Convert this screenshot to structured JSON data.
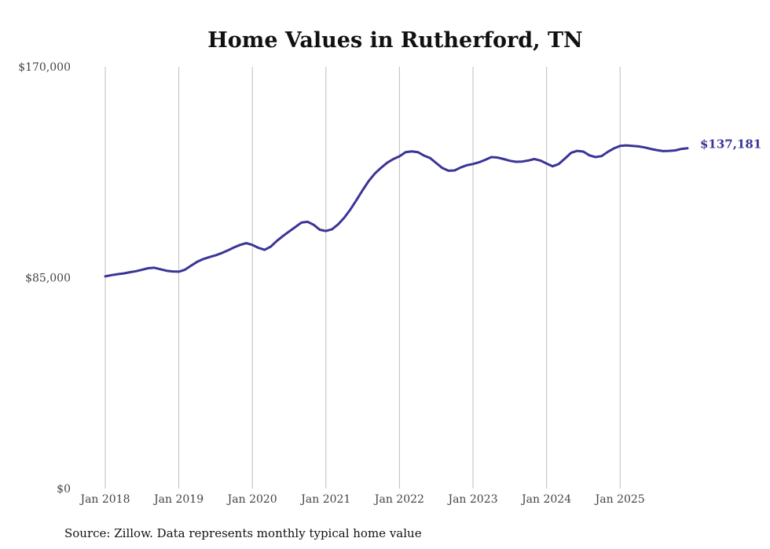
{
  "chart_data": {
    "type": "line",
    "title": "Home Values in Rutherford, TN",
    "xlabel": "",
    "ylabel": "",
    "ylim": [
      0,
      170000
    ],
    "y_ticks": [
      0,
      85000,
      170000
    ],
    "y_tick_labels": [
      "$0",
      "$85,000",
      "$170,000"
    ],
    "x_tick_labels": [
      "Jan 2018",
      "Jan 2019",
      "Jan 2020",
      "Jan 2021",
      "Jan 2022",
      "Jan 2023",
      "Jan 2024",
      "Jan 2025"
    ],
    "x_start": "Jan 2018",
    "x_end": "Dec 2025",
    "grid": "vertical",
    "series": [
      {
        "name": "Typical home value",
        "color": "#3a3496",
        "end_label": "$137,181",
        "values": [
          85500,
          86000,
          86400,
          86700,
          87200,
          87600,
          88200,
          88800,
          89000,
          88400,
          87800,
          87500,
          87400,
          88200,
          89800,
          91400,
          92500,
          93300,
          94000,
          94900,
          96000,
          97200,
          98200,
          98900,
          98200,
          97000,
          96200,
          97500,
          99800,
          101800,
          103600,
          105400,
          107200,
          107500,
          106300,
          104300,
          103800,
          104500,
          106500,
          109200,
          112500,
          116300,
          120300,
          124000,
          127000,
          129300,
          131300,
          132800,
          133900,
          135600,
          135900,
          135600,
          134200,
          133200,
          131200,
          129200,
          128100,
          128200,
          129400,
          130300,
          130800,
          131500,
          132500,
          133600,
          133400,
          132800,
          132100,
          131700,
          131800,
          132200,
          132800,
          132200,
          131000,
          129900,
          130800,
          133000,
          135300,
          136100,
          135800,
          134300,
          133600,
          134000,
          135700,
          137100,
          138100,
          138300,
          138100,
          137900,
          137500,
          136900,
          136400,
          136000,
          136100,
          136300,
          136900,
          137181
        ]
      }
    ],
    "source": "Source: Zillow. Data represents monthly typical home value"
  }
}
